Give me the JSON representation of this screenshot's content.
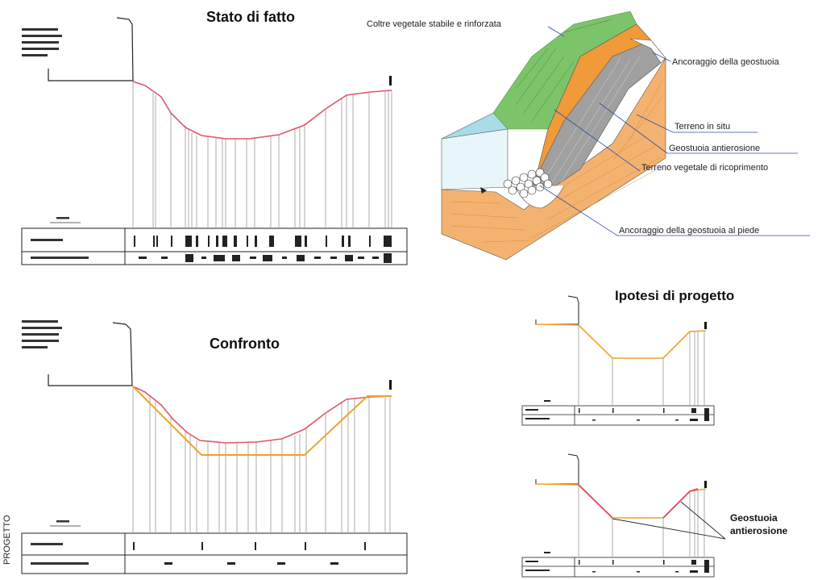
{
  "sections": {
    "existing": {
      "title": "Stato di fatto"
    },
    "comparison": {
      "title": "Confronto"
    },
    "project": {
      "title": "Ipotesi di progetto"
    }
  },
  "block_diagram": {
    "labels": {
      "vegetation": "Coltre vegetale stabile e rinforzata",
      "top_anchor": "Ancoraggio della geostuoia",
      "in_situ": "Terreno in situ",
      "geomat": "Geostuoia antierosione",
      "topsoil": "Terreno vegetale di ricoprimento",
      "toe_anchor": "Ancoraggio della geostuoia al piede"
    }
  },
  "callouts": {
    "geomat_line1": "Geostuoia",
    "geomat_line2": "antierosione"
  },
  "side_label": "PROGETTO",
  "colors": {
    "existing_profile": "#e0556a",
    "project_profile": "#f0a030",
    "vegetation": "#7cc46a",
    "water": "#a8dce8",
    "soil": "#f4b270",
    "geomat": "#9a9a9a"
  }
}
